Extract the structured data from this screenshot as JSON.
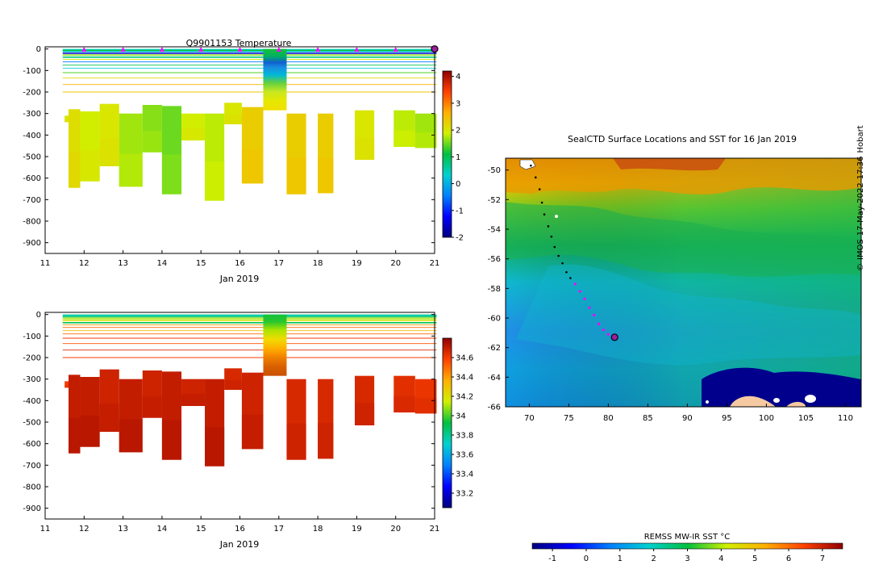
{
  "chart_data": [
    {
      "type": "heatmap",
      "title": "Q9901153  Temperature",
      "xlabel": "Jan 2019",
      "ylabel": "",
      "xlim": [
        11,
        21
      ],
      "ylim": [
        -950,
        10
      ],
      "x_ticks": [
        "11",
        "12",
        "13",
        "14",
        "15",
        "16",
        "17",
        "18",
        "19",
        "20",
        "21"
      ],
      "y_ticks": [
        "0",
        "-100",
        "-200",
        "-300",
        "-400",
        "-500",
        "-600",
        "-700",
        "-800",
        "-900"
      ],
      "colorbar": {
        "min": -2,
        "max": 4.2,
        "ticks": [
          "4",
          "3",
          "2",
          "1",
          "0",
          "-1",
          "-2"
        ]
      },
      "profile_markers_day": [
        12,
        13,
        14,
        15,
        16,
        17,
        18,
        19,
        20
      ],
      "current_marker_day": 21,
      "profiles": [
        {
          "x0": 11.5,
          "x1": 11.6,
          "top": -310,
          "bottom": -340,
          "value": 2.0
        },
        {
          "x0": 11.6,
          "x1": 11.9,
          "top": -280,
          "bottom": -645,
          "value": 2.1
        },
        {
          "x0": 11.9,
          "x1": 12.4,
          "top": -290,
          "bottom": -615,
          "value": 1.9
        },
        {
          "x0": 12.4,
          "x1": 12.9,
          "top": -255,
          "bottom": -545,
          "value": 2.0
        },
        {
          "x0": 12.9,
          "x1": 13.5,
          "top": -300,
          "bottom": -640,
          "value": 1.7
        },
        {
          "x0": 13.5,
          "x1": 14.0,
          "top": -260,
          "bottom": -480,
          "value": 1.6
        },
        {
          "x0": 14.0,
          "x1": 14.5,
          "top": -265,
          "bottom": -675,
          "value": 1.5
        },
        {
          "x0": 14.5,
          "x1": 15.1,
          "top": -300,
          "bottom": -425,
          "value": 1.9
        },
        {
          "x0": 15.1,
          "x1": 15.6,
          "top": -300,
          "bottom": -705,
          "value": 1.8
        },
        {
          "x0": 15.6,
          "x1": 16.05,
          "top": -250,
          "bottom": -350,
          "value": 2.0
        },
        {
          "x0": 16.05,
          "x1": 16.6,
          "top": -270,
          "bottom": -625,
          "value": 2.3
        },
        {
          "x0": 17.2,
          "x1": 17.7,
          "top": -300,
          "bottom": -675,
          "value": 2.3
        },
        {
          "x0": 18.0,
          "x1": 18.4,
          "top": -300,
          "bottom": -670,
          "value": 2.3
        },
        {
          "x0": 18.95,
          "x1": 19.45,
          "top": -285,
          "bottom": -515,
          "value": 2.0
        },
        {
          "x0": 19.95,
          "x1": 20.5,
          "top": -285,
          "bottom": -455,
          "value": 1.8
        },
        {
          "x0": 20.5,
          "x1": 21.05,
          "top": -300,
          "bottom": -460,
          "value": 1.7
        }
      ],
      "surface_profile": {
        "x0": 16.6,
        "x1": 17.2,
        "top": 0,
        "bottom": -285
      }
    },
    {
      "type": "heatmap",
      "title": "",
      "xlabel": "Jan 2019",
      "ylabel": "",
      "xlim": [
        11,
        21
      ],
      "ylim": [
        -950,
        10
      ],
      "x_ticks": [
        "11",
        "12",
        "13",
        "14",
        "15",
        "16",
        "17",
        "18",
        "19",
        "20",
        "21"
      ],
      "y_ticks": [
        "0",
        "-100",
        "-200",
        "-300",
        "-400",
        "-500",
        "-600",
        "-700",
        "-800",
        "-900"
      ],
      "colorbar": {
        "min": 33.05,
        "max": 34.8,
        "ticks": [
          "34.6",
          "34.4",
          "34.2",
          "34",
          "33.8",
          "33.6",
          "33.4",
          "33.2"
        ]
      },
      "profiles": [
        {
          "x0": 11.5,
          "x1": 11.6,
          "top": -310,
          "bottom": -340,
          "value": 34.6
        },
        {
          "x0": 11.6,
          "x1": 11.9,
          "top": -280,
          "bottom": -645,
          "value": 34.7
        },
        {
          "x0": 11.9,
          "x1": 12.4,
          "top": -290,
          "bottom": -615,
          "value": 34.7
        },
        {
          "x0": 12.4,
          "x1": 12.9,
          "top": -255,
          "bottom": -545,
          "value": 34.68
        },
        {
          "x0": 12.9,
          "x1": 13.5,
          "top": -300,
          "bottom": -640,
          "value": 34.7
        },
        {
          "x0": 13.5,
          "x1": 14.0,
          "top": -260,
          "bottom": -480,
          "value": 34.68
        },
        {
          "x0": 14.0,
          "x1": 14.5,
          "top": -265,
          "bottom": -675,
          "value": 34.7
        },
        {
          "x0": 14.5,
          "x1": 15.1,
          "top": -300,
          "bottom": -425,
          "value": 34.68
        },
        {
          "x0": 15.1,
          "x1": 15.6,
          "top": -300,
          "bottom": -705,
          "value": 34.7
        },
        {
          "x0": 15.6,
          "x1": 16.05,
          "top": -250,
          "bottom": -350,
          "value": 34.66
        },
        {
          "x0": 16.05,
          "x1": 16.6,
          "top": -270,
          "bottom": -625,
          "value": 34.68
        },
        {
          "x0": 17.2,
          "x1": 17.7,
          "top": -300,
          "bottom": -675,
          "value": 34.66
        },
        {
          "x0": 18.0,
          "x1": 18.4,
          "top": -300,
          "bottom": -670,
          "value": 34.66
        },
        {
          "x0": 18.95,
          "x1": 19.45,
          "top": -285,
          "bottom": -515,
          "value": 34.66
        },
        {
          "x0": 19.95,
          "x1": 20.5,
          "top": -285,
          "bottom": -455,
          "value": 34.64
        },
        {
          "x0": 20.5,
          "x1": 21.05,
          "top": -300,
          "bottom": -460,
          "value": 34.62
        }
      ],
      "surface_profile": {
        "x0": 16.6,
        "x1": 17.2,
        "top": 0,
        "bottom": -285
      }
    },
    {
      "type": "heatmap",
      "title": "SealCTD Surface Locations and SST for 16 Jan 2019",
      "xlabel": "",
      "ylabel": "",
      "xlim": [
        67,
        112
      ],
      "ylim": [
        -66,
        -49.2
      ],
      "x_ticks": [
        "70",
        "75",
        "80",
        "85",
        "90",
        "95",
        "100",
        "105",
        "110"
      ],
      "y_ticks": [
        "-50",
        "-52",
        "-54",
        "-56",
        "-58",
        "-60",
        "-62",
        "-64",
        "-66"
      ],
      "colorbar": {
        "label": "REMSS MW-IR SST °C",
        "min": -1.6,
        "max": 7.6,
        "ticks": [
          "-1",
          "0",
          "1",
          "2",
          "3",
          "4",
          "5",
          "6",
          "7"
        ]
      },
      "track_points_black": [
        [
          70.2,
          -49.7
        ],
        [
          70.8,
          -50.5
        ],
        [
          71.3,
          -51.3
        ],
        [
          71.6,
          -52.2
        ],
        [
          71.9,
          -53.0
        ],
        [
          72.4,
          -53.8
        ],
        [
          72.8,
          -54.5
        ],
        [
          73.2,
          -55.2
        ],
        [
          73.7,
          -55.8
        ],
        [
          74.2,
          -56.3
        ],
        [
          74.7,
          -56.9
        ],
        [
          75.2,
          -57.3
        ]
      ],
      "track_points_magenta": [
        [
          75.8,
          -57.7
        ],
        [
          76.4,
          -58.2
        ],
        [
          77.0,
          -58.7
        ],
        [
          77.6,
          -59.3
        ],
        [
          78.2,
          -59.8
        ],
        [
          78.8,
          -60.4
        ],
        [
          79.4,
          -60.8
        ],
        [
          80.0,
          -61.1
        ]
      ],
      "current_location": [
        80.8,
        -61.3
      ]
    }
  ],
  "credit_parts": [
    "©",
    "IMOS",
    "17-May-2022",
    "17:36",
    "Hobart"
  ],
  "colors": {
    "profile_marker": "#ff00ff",
    "current_marker": "#9b1fa0",
    "land": "#f5c9a2",
    "ice_blue": "#00008c"
  }
}
